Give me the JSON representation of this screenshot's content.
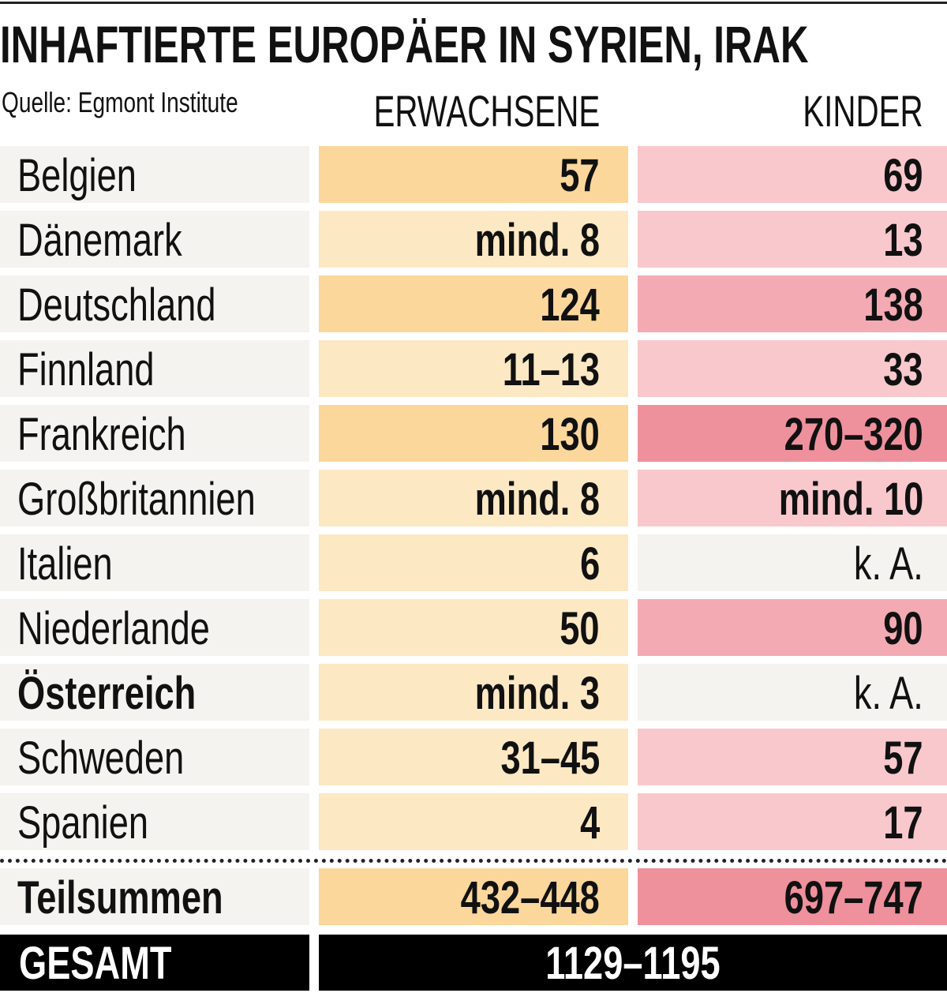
{
  "title": "INHAFTIERTE EUROPÄER IN SYRIEN, IRAK",
  "source": "Quelle: Egmont Institute",
  "columns": {
    "adults": "ERWACHSENE",
    "children": "KINDER"
  },
  "colors": {
    "country_bg": "#f5f3ef",
    "adults": {
      "light": "#fde8c4",
      "medium": "#fbd79c"
    },
    "children": {
      "none": "#f5f3ef",
      "light": "#f8c8cc",
      "medium": "#f3aab2",
      "dark": "#ee919c"
    }
  },
  "chart_data": {
    "type": "table",
    "title": "INHAFTIERTE EUROPÄER IN SYRIEN, IRAK",
    "rows": [
      {
        "country": "Belgien",
        "adults": "57",
        "adults_shade": "medium",
        "children": "69",
        "children_shade": "light"
      },
      {
        "country": "Dänemark",
        "adults": "mind. 8",
        "adults_shade": "light",
        "children": "13",
        "children_shade": "light"
      },
      {
        "country": "Deutschland",
        "adults": "124",
        "adults_shade": "medium",
        "children": "138",
        "children_shade": "medium"
      },
      {
        "country": "Finnland",
        "adults": "11–13",
        "adults_shade": "light",
        "children": "33",
        "children_shade": "light"
      },
      {
        "country": "Frankreich",
        "adults": "130",
        "adults_shade": "medium",
        "children": "270–320",
        "children_shade": "dark"
      },
      {
        "country": "Großbritannien",
        "adults": "mind. 8",
        "adults_shade": "light",
        "children": "mind. 10",
        "children_shade": "light"
      },
      {
        "country": "Italien",
        "adults": "6",
        "adults_shade": "light",
        "children": "k. A.",
        "children_shade": "none"
      },
      {
        "country": "Niederlande",
        "adults": "50",
        "adults_shade": "light",
        "children": "90",
        "children_shade": "medium"
      },
      {
        "country": "Österreich",
        "adults": "mind. 3",
        "adults_shade": "light",
        "children": "k. A.",
        "children_shade": "none",
        "highlight": true
      },
      {
        "country": "Schweden",
        "adults": "31–45",
        "adults_shade": "light",
        "children": "57",
        "children_shade": "light"
      },
      {
        "country": "Spanien",
        "adults": "4",
        "adults_shade": "light",
        "children": "17",
        "children_shade": "light"
      }
    ],
    "subtotal": {
      "label": "Teilsummen",
      "adults": "432–448",
      "adults_shade": "medium",
      "children": "697–747",
      "children_shade": "dark"
    },
    "total": {
      "label": "GESAMT",
      "value": "1129–1195"
    }
  }
}
